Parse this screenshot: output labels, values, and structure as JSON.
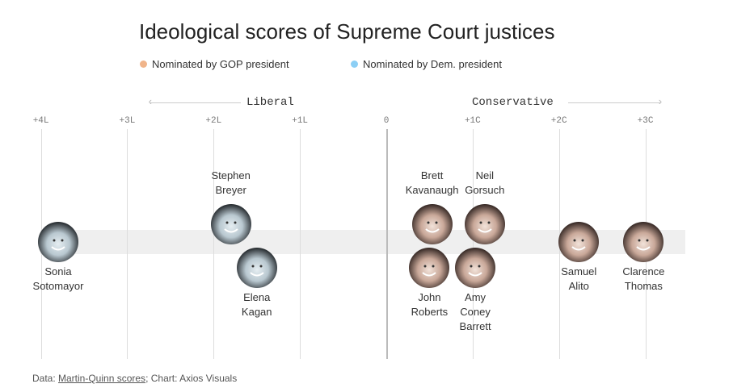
{
  "chart_data": {
    "type": "scatter",
    "title": "Ideological scores of Supreme Court justices",
    "legend": [
      {
        "label": "Nominated by GOP president",
        "color": "#f0b48a"
      },
      {
        "label": "Nominated by Dem. president",
        "color": "#8ccff5"
      }
    ],
    "legend_placement": "top",
    "direction_labels": {
      "left": "Liberal",
      "right": "Conservative"
    },
    "xlim": [
      -4,
      3
    ],
    "ticks": [
      {
        "value": -4,
        "label": "+4L"
      },
      {
        "value": -3,
        "label": "+3L"
      },
      {
        "value": -2,
        "label": "+2L"
      },
      {
        "value": -1,
        "label": "+1L"
      },
      {
        "value": 0,
        "label": "0"
      },
      {
        "value": 1,
        "label": "+1C"
      },
      {
        "value": 2,
        "label": "+2C"
      },
      {
        "value": 3,
        "label": "+3C"
      }
    ],
    "points": [
      {
        "name": "Sonia Sotomayor",
        "lines": [
          "Sonia",
          "Sotomayor"
        ],
        "score": -3.8,
        "party": "Dem"
      },
      {
        "name": "Stephen Breyer",
        "lines": [
          "Stephen",
          "Breyer"
        ],
        "score": -1.8,
        "party": "Dem"
      },
      {
        "name": "Elena Kagan",
        "lines": [
          "Elena",
          "Kagan"
        ],
        "score": -1.5,
        "party": "Dem"
      },
      {
        "name": "Brett Kavanaugh",
        "lines": [
          "Brett",
          "Kavanaugh"
        ],
        "score": 0.53,
        "party": "GOP"
      },
      {
        "name": "Neil Gorsuch",
        "lines": [
          "Neil",
          "Gorsuch"
        ],
        "score": 1.14,
        "party": "GOP"
      },
      {
        "name": "John Roberts",
        "lines": [
          "John",
          "Roberts"
        ],
        "score": 0.5,
        "party": "GOP"
      },
      {
        "name": "Amy Coney Barrett",
        "lines": [
          "Amy",
          "Coney",
          "Barrett"
        ],
        "score": 1.03,
        "party": "GOP"
      },
      {
        "name": "Samuel Alito",
        "lines": [
          "Samuel",
          "Alito"
        ],
        "score": 2.23,
        "party": "GOP"
      },
      {
        "name": "Clarence Thomas",
        "lines": [
          "Clarence",
          "Thomas"
        ],
        "score": 2.98,
        "party": "GOP"
      }
    ]
  },
  "footer": {
    "prefix": "Data: ",
    "link": "Martin-Quinn scores",
    "suffix": "; Chart: Axios Visuals"
  }
}
